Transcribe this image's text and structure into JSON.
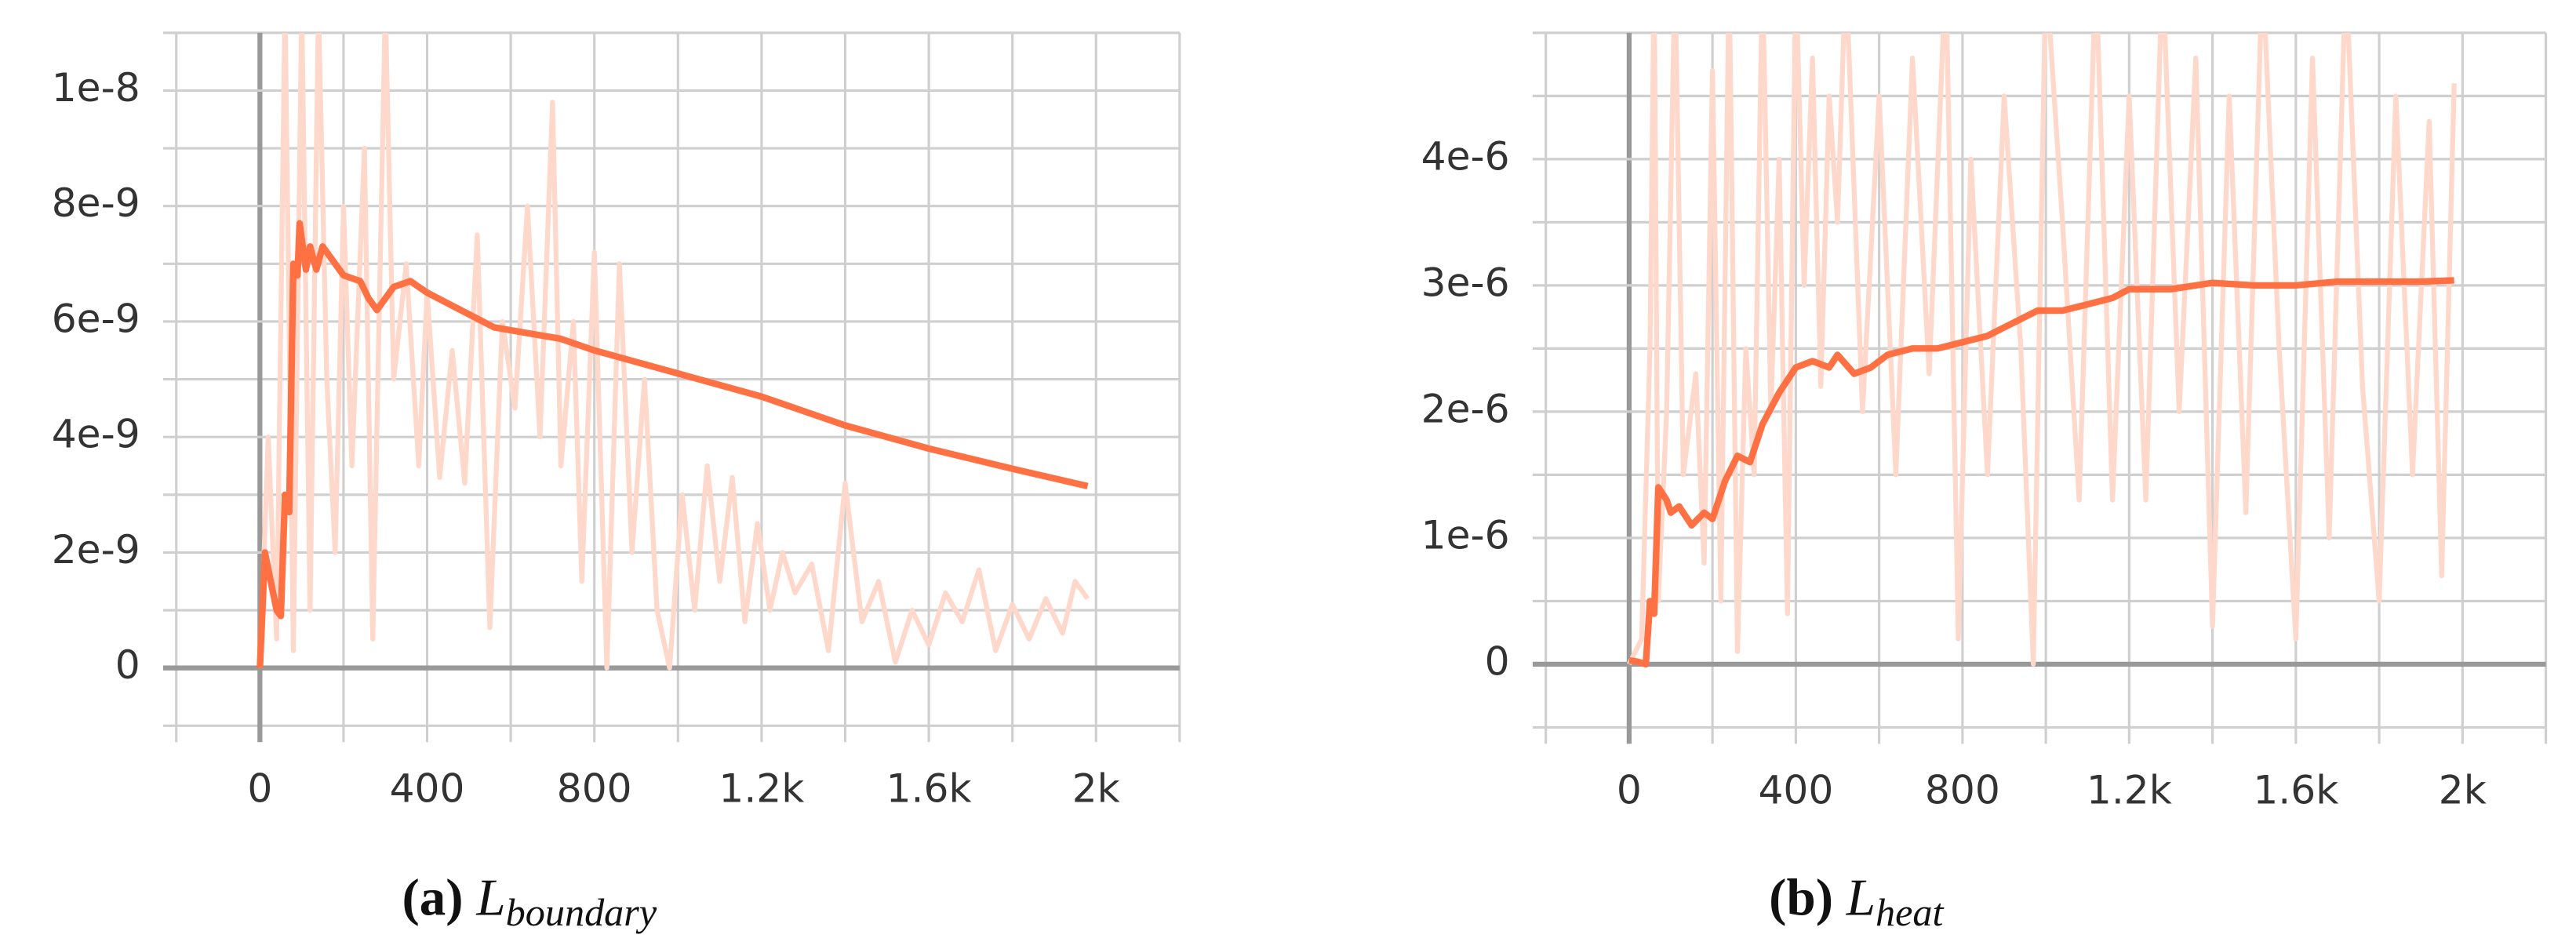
{
  "chart_data": [
    {
      "type": "line",
      "xlim": [
        -200,
        2200
      ],
      "ylim": [
        -1e-09,
        1.1e-08
      ],
      "xticks": [
        0,
        400,
        800,
        {
          "value": 1200,
          "label": "1.2k"
        },
        {
          "value": 1600,
          "label": "1.6k"
        },
        {
          "value": 2000,
          "label": "2k"
        }
      ],
      "minor_xticks": [
        -200,
        200,
        600,
        1000,
        1400,
        1800,
        2200
      ],
      "yticks": [
        {
          "value": 0,
          "label": "0"
        },
        {
          "value": 2e-09,
          "label": "2e-9"
        },
        {
          "value": 4e-09,
          "label": "4e-9"
        },
        {
          "value": 6e-09,
          "label": "6e-9"
        },
        {
          "value": 8e-09,
          "label": "8e-9"
        },
        {
          "value": 1e-08,
          "label": "1e-8"
        }
      ],
      "minor_yticks": [
        -1e-09,
        1e-09,
        3e-09,
        5e-09,
        7e-09,
        9e-09,
        1.1e-08
      ],
      "grid": true,
      "caption_label": "(a)",
      "caption_symbol": "L",
      "caption_subscript": "boundary",
      "series": [
        {
          "color": "#ffd8cc",
          "x": [
            0,
            20,
            40,
            60,
            80,
            100,
            120,
            140,
            160,
            180,
            200,
            220,
            250,
            270,
            300,
            320,
            350,
            380,
            400,
            430,
            460,
            490,
            520,
            550,
            580,
            610,
            640,
            670,
            700,
            720,
            750,
            770,
            800,
            830,
            860,
            890,
            920,
            950,
            980,
            1010,
            1040,
            1070,
            1100,
            1130,
            1160,
            1190,
            1220,
            1250,
            1280,
            1320,
            1360,
            1400,
            1440,
            1480,
            1520,
            1560,
            1600,
            1640,
            1680,
            1720,
            1760,
            1800,
            1840,
            1880,
            1920,
            1950,
            1980
          ],
          "values": [
            0,
            4e-09,
            5e-10,
            1.15e-08,
            3e-10,
            1.15e-08,
            1e-09,
            1.15e-08,
            5e-09,
            2e-09,
            8e-09,
            3.5e-09,
            9e-09,
            5e-10,
            1.15e-08,
            5e-09,
            7e-09,
            3.5e-09,
            6.5e-09,
            3.3e-09,
            5.5e-09,
            3.2e-09,
            7.5e-09,
            7e-10,
            6e-09,
            4.5e-09,
            8e-09,
            4e-09,
            9.8e-09,
            3.5e-09,
            6e-09,
            1.5e-09,
            7.2e-09,
            0,
            7e-09,
            2e-09,
            5e-09,
            1e-09,
            0,
            3e-09,
            1e-09,
            3.5e-09,
            1.5e-09,
            3.3e-09,
            8e-10,
            2.5e-09,
            1e-09,
            2e-09,
            1.3e-09,
            1.8e-09,
            3e-10,
            3.2e-09,
            8e-10,
            1.5e-09,
            1e-10,
            1e-09,
            4e-10,
            1.3e-09,
            8e-10,
            1.7e-09,
            3e-10,
            1.1e-09,
            5e-10,
            1.2e-09,
            6e-10,
            1.5e-09,
            1.2e-09
          ]
        },
        {
          "color": "#ff7043",
          "x": [
            0,
            12,
            40,
            50,
            60,
            70,
            80,
            90,
            95,
            110,
            120,
            135,
            150,
            180,
            200,
            240,
            260,
            280,
            300,
            320,
            360,
            400,
            480,
            560,
            640,
            720,
            800,
            900,
            1000,
            1200,
            1400,
            1600,
            1800,
            1980
          ],
          "values": [
            0,
            2e-09,
            1e-09,
            9e-10,
            3e-09,
            2.7e-09,
            7e-09,
            6.8e-09,
            7.7e-09,
            6.9e-09,
            7.3e-09,
            6.9e-09,
            7.3e-09,
            7e-09,
            6.8e-09,
            6.7e-09,
            6.4e-09,
            6.2e-09,
            6.4e-09,
            6.6e-09,
            6.7e-09,
            6.5e-09,
            6.2e-09,
            5.9e-09,
            5.8e-09,
            5.7e-09,
            5.5e-09,
            5.3e-09,
            5.1e-09,
            4.7e-09,
            4.2e-09,
            3.8e-09,
            3.45e-09,
            3.15e-09
          ]
        }
      ]
    },
    {
      "type": "line",
      "xlim": [
        -200,
        2200
      ],
      "ylim": [
        -5e-07,
        5e-06
      ],
      "xticks": [
        0,
        400,
        800,
        {
          "value": 1200,
          "label": "1.2k"
        },
        {
          "value": 1600,
          "label": "1.6k"
        },
        {
          "value": 2000,
          "label": "2k"
        }
      ],
      "minor_xticks": [
        -200,
        200,
        600,
        1000,
        1400,
        1800,
        2200
      ],
      "yticks": [
        {
          "value": 0,
          "label": "0"
        },
        {
          "value": 1e-06,
          "label": "1e-6"
        },
        {
          "value": 2e-06,
          "label": "2e-6"
        },
        {
          "value": 3e-06,
          "label": "3e-6"
        },
        {
          "value": 4e-06,
          "label": "4e-6"
        }
      ],
      "minor_yticks": [
        -5e-07,
        5e-07,
        1.5e-06,
        2.5e-06,
        3.5e-06,
        4.5e-06,
        5e-06
      ],
      "grid": true,
      "caption_label": "(b)",
      "caption_symbol": "L",
      "caption_subscript": "heat",
      "series": [
        {
          "color": "#ffd8cc",
          "x": [
            0,
            30,
            50,
            60,
            70,
            90,
            110,
            130,
            160,
            180,
            200,
            220,
            240,
            260,
            280,
            300,
            320,
            340,
            360,
            380,
            400,
            420,
            440,
            460,
            480,
            500,
            520,
            560,
            600,
            640,
            680,
            720,
            760,
            790,
            820,
            860,
            900,
            940,
            970,
            1000,
            1040,
            1080,
            1120,
            1160,
            1200,
            1240,
            1280,
            1320,
            1360,
            1400,
            1440,
            1480,
            1520,
            1560,
            1600,
            1640,
            1680,
            1720,
            1760,
            1800,
            1840,
            1880,
            1920,
            1950,
            1980
          ],
          "values": [
            0,
            2e-07,
            2.5e-06,
            5.5e-06,
            5e-07,
            2e-06,
            5.5e-06,
            1.5e-06,
            2.3e-06,
            8e-07,
            4.7e-06,
            5e-07,
            5.5e-06,
            1e-07,
            2.5e-06,
            1.5e-06,
            5.5e-06,
            2e-06,
            4e-06,
            4e-07,
            5.5e-06,
            3e-06,
            4.8e-06,
            2.2e-06,
            4.5e-06,
            3.5e-06,
            5.5e-06,
            2e-06,
            4.5e-06,
            1.5e-06,
            4.8e-06,
            2.3e-06,
            5.5e-06,
            2e-07,
            4e-06,
            1.5e-06,
            4.5e-06,
            2.5e-06,
            0,
            5.5e-06,
            3.5e-06,
            1.3e-06,
            5.5e-06,
            1.3e-06,
            4.5e-06,
            1.3e-06,
            5.5e-06,
            2e-06,
            4.8e-06,
            3e-07,
            4.5e-06,
            1.2e-06,
            5.5e-06,
            2.5e-06,
            2e-07,
            4.8e-06,
            1e-06,
            5.5e-06,
            2.2e-06,
            5e-07,
            4.5e-06,
            1.5e-06,
            4.3e-06,
            7e-07,
            4.6e-06
          ]
        },
        {
          "color": "#ff7043",
          "x": [
            0,
            20,
            40,
            50,
            60,
            70,
            90,
            100,
            120,
            150,
            180,
            200,
            230,
            260,
            290,
            320,
            360,
            400,
            440,
            480,
            500,
            540,
            580,
            620,
            680,
            740,
            800,
            860,
            920,
            980,
            1040,
            1100,
            1160,
            1200,
            1300,
            1400,
            1500,
            1600,
            1700,
            1800,
            1900,
            1980
          ],
          "values": [
            3e-08,
            2e-08,
            0,
            5e-07,
            4e-07,
            1.4e-06,
            1.3e-06,
            1.2e-06,
            1.25e-06,
            1.1e-06,
            1.2e-06,
            1.15e-06,
            1.45e-06,
            1.65e-06,
            1.6e-06,
            1.9e-06,
            2.15e-06,
            2.35e-06,
            2.4e-06,
            2.35e-06,
            2.45e-06,
            2.3e-06,
            2.35e-06,
            2.45e-06,
            2.5e-06,
            2.5e-06,
            2.55e-06,
            2.6e-06,
            2.7e-06,
            2.8e-06,
            2.8e-06,
            2.85e-06,
            2.9e-06,
            2.97e-06,
            2.97e-06,
            3.02e-06,
            3e-06,
            3e-06,
            3.03e-06,
            3.03e-06,
            3.03e-06,
            3.04e-06
          ]
        }
      ]
    }
  ]
}
